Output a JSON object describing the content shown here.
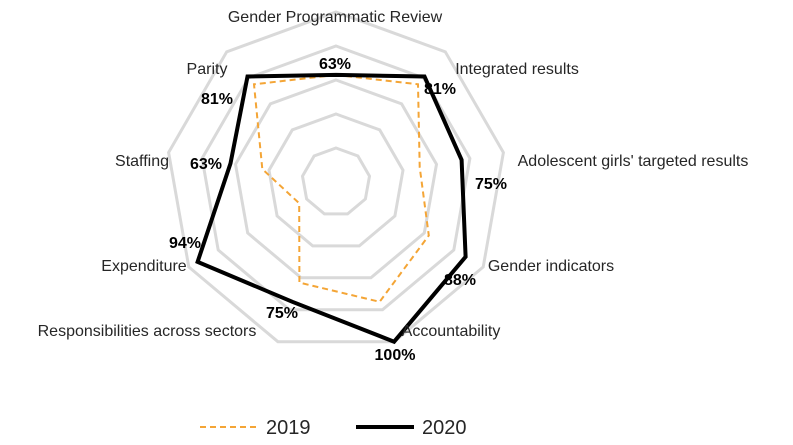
{
  "chart_data": {
    "type": "radar",
    "title": "",
    "categories": [
      "Gender Programmatic Review",
      "Integrated results",
      "Adolescent girls' targeted results",
      "Gender indicators",
      "Accountability",
      "Responsibilities across sectors",
      "Expenditure",
      "Staffing",
      "Parity"
    ],
    "rlim": [
      0,
      100
    ],
    "grid": true,
    "grid_rings": 5,
    "legend_position": "bottom",
    "series": [
      {
        "name": "2019",
        "values": [
          63,
          75,
          50,
          63,
          75,
          63,
          25,
          44,
          75
        ],
        "color": "#f4a536",
        "dash": "dashed"
      },
      {
        "name": "2020",
        "values": [
          63,
          81,
          75,
          88,
          100,
          75,
          94,
          63,
          81
        ],
        "color": "#000000",
        "dash": "solid"
      }
    ],
    "value_labels": [
      "63%",
      "81%",
      "75%",
      "88%",
      "100%",
      "75%",
      "94%",
      "63%",
      "81%"
    ]
  }
}
